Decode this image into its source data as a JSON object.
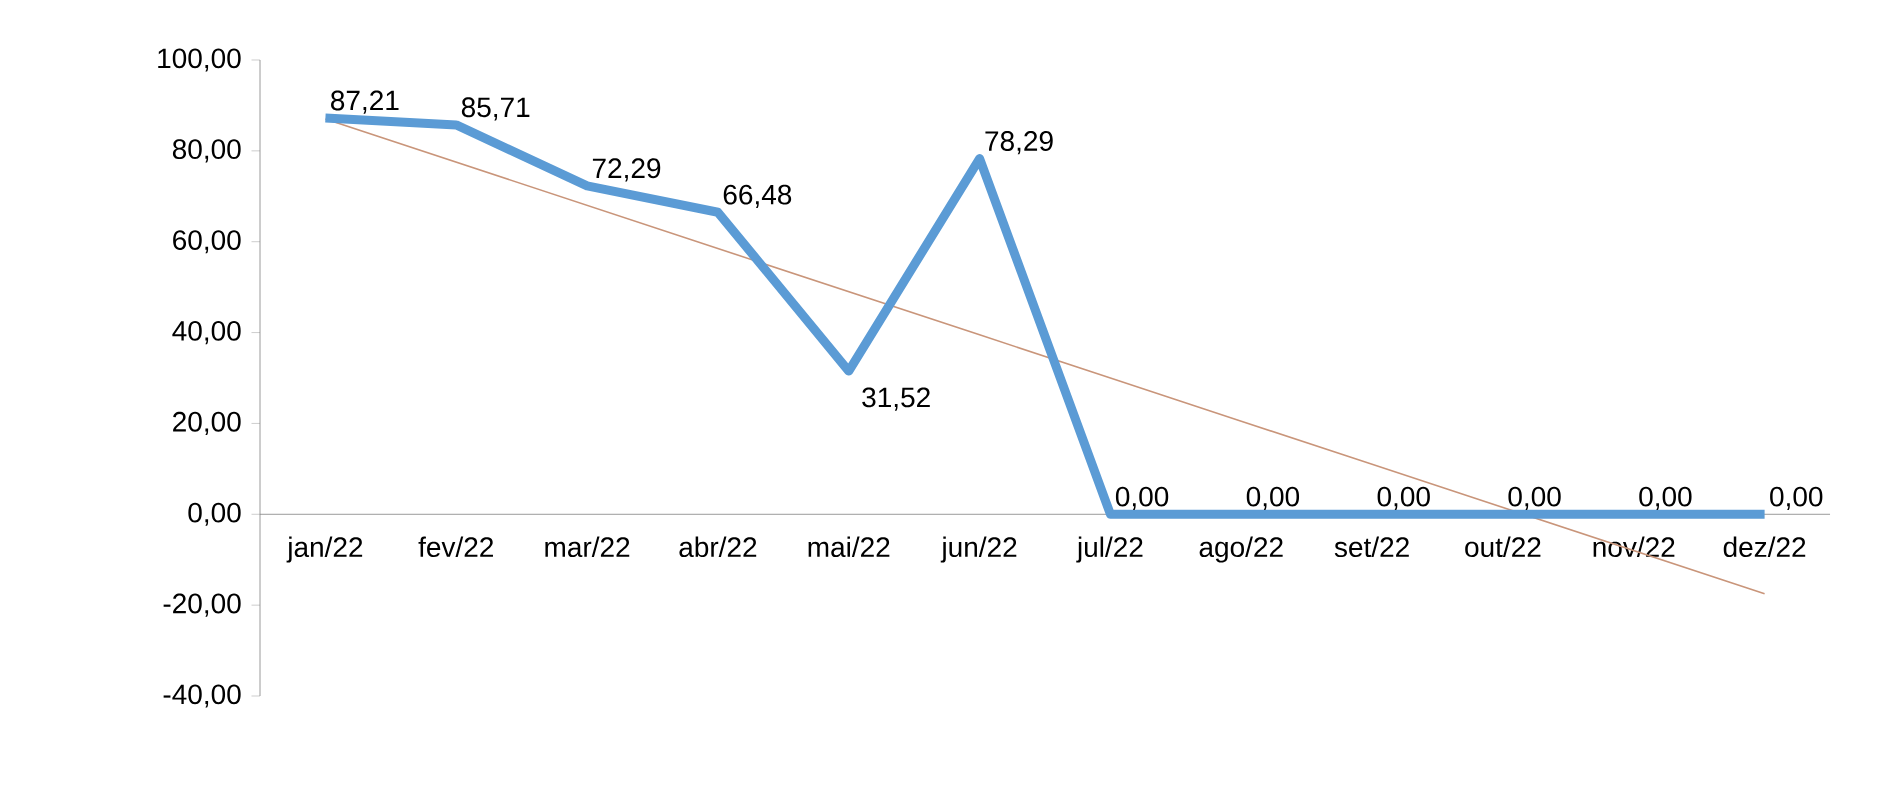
{
  "chart_data": {
    "type": "line",
    "categories": [
      "jan/22",
      "fev/22",
      "mar/22",
      "abr/22",
      "mai/22",
      "jun/22",
      "jul/22",
      "ago/22",
      "set/22",
      "out/22",
      "nov/22",
      "dez/22"
    ],
    "series": [
      {
        "color": "#5b9bd5",
        "values": [
          87.21,
          85.71,
          72.29,
          66.48,
          31.52,
          78.29,
          0,
          0,
          0,
          0,
          0,
          0
        ],
        "value_labels": [
          "87,21",
          "85,71",
          "72,29",
          "66,48",
          "31,52",
          "78,29",
          "0,00",
          "0,00",
          "0,00",
          "0,00",
          "0,00",
          "0,00"
        ]
      },
      {
        "type": "line",
        "color": "#c9957a",
        "values": [
          87,
          77.5,
          68,
          58.5,
          49,
          39.5,
          30,
          20.5,
          11,
          1.5,
          -8,
          -17.5
        ]
      }
    ],
    "ylim": [
      -40,
      100
    ],
    "yticks": [
      {
        "value": -40,
        "label": "-40,00"
      },
      {
        "value": -20,
        "label": "-20,00"
      },
      {
        "value": 0,
        "label": "0,00"
      },
      {
        "value": 20,
        "label": "20,00"
      },
      {
        "value": 40,
        "label": "40,00"
      },
      {
        "value": 60,
        "label": "60,00"
      },
      {
        "value": 80,
        "label": "80,00"
      },
      {
        "value": 100,
        "label": "100,00"
      }
    ],
    "grid": false,
    "marker": "none"
  }
}
